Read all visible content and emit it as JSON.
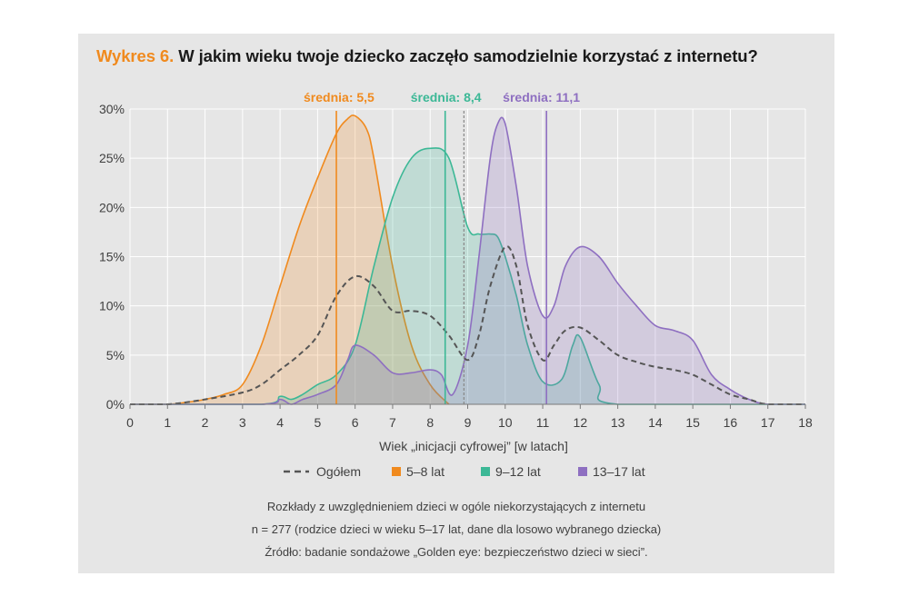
{
  "title": {
    "number": "Wykres 6.",
    "text": "W jakim wieku twoje dziecko zaczęło samodzielnie korzystać z internetu?"
  },
  "chart_data": {
    "type": "area",
    "xlabel": "Wiek „inicjacji cyfrowej” [w latach]",
    "ylabel": "",
    "xlim": [
      0,
      18
    ],
    "ylim": [
      0,
      30
    ],
    "x_ticks": [
      "0",
      "1",
      "2",
      "3",
      "4",
      "5",
      "6",
      "7",
      "8",
      "9",
      "10",
      "11",
      "12",
      "13",
      "14",
      "15",
      "16",
      "17",
      "18"
    ],
    "y_ticks": [
      "0%",
      "5%",
      "10%",
      "15%",
      "20%",
      "25%",
      "30%"
    ],
    "grid": true,
    "legend_position": "bottom",
    "legend": [
      {
        "label": "Ogółem",
        "color": "#555555",
        "style": "dashed"
      },
      {
        "label": "5–8 lat",
        "color": "#f08a1e",
        "style": "solid"
      },
      {
        "label": "9–12 lat",
        "color": "#3cb896",
        "style": "solid"
      },
      {
        "label": "13–17 lat",
        "color": "#8e6fc1",
        "style": "solid"
      }
    ],
    "series": [
      {
        "name": "5–8 lat",
        "color": "#f08a1e",
        "x": [
          0,
          1,
          1.5,
          2,
          2.5,
          3,
          3.5,
          4,
          4.5,
          5,
          5.5,
          5.8,
          6,
          6.3,
          6.5,
          7,
          7.5,
          8,
          8.5
        ],
        "y": [
          0,
          0,
          0.2,
          0.5,
          1,
          2,
          6,
          12,
          18,
          23,
          27.5,
          29,
          29.3,
          28,
          25,
          14,
          6,
          2,
          0
        ]
      },
      {
        "name": "9–12 lat",
        "color": "#3cb896",
        "x": [
          0,
          3.5,
          4,
          4.3,
          4.6,
          5,
          5.5,
          6,
          6.5,
          7,
          7.5,
          8,
          8.5,
          9,
          9.3,
          9.6,
          9.8,
          10,
          10.3,
          10.6,
          11,
          11.5,
          11.8,
          12,
          12.5,
          13,
          18
        ],
        "y": [
          0,
          0,
          0.8,
          0.5,
          1,
          2,
          3,
          6,
          14,
          21,
          25,
          26,
          25,
          18,
          17.3,
          17.3,
          17,
          15,
          11,
          6,
          2.3,
          2.5,
          6,
          6.8,
          2,
          0,
          0
        ]
      },
      {
        "name": "13–17 lat",
        "color": "#8e6fc1",
        "x": [
          0,
          3.5,
          4,
          4.3,
          4.6,
          5,
          5.5,
          5.8,
          6,
          6.5,
          7,
          7.5,
          8,
          8.3,
          8.6,
          9,
          9.3,
          9.6,
          9.8,
          10,
          10.3,
          10.6,
          11,
          11.3,
          11.6,
          12,
          12.5,
          13,
          13.5,
          14,
          14.5,
          15,
          15.5,
          16,
          16.5,
          17,
          18
        ],
        "y": [
          0,
          0,
          0.5,
          0,
          0.5,
          1,
          2,
          4.5,
          6,
          5,
          3.2,
          3.2,
          3.5,
          3,
          1,
          6,
          15,
          25,
          28.5,
          28.5,
          22,
          14,
          9,
          10,
          14,
          16,
          15,
          12.3,
          10,
          8,
          7.5,
          6.5,
          3,
          1.5,
          0.5,
          0,
          0
        ]
      },
      {
        "name": "Ogółem",
        "color": "#555555",
        "dashed": true,
        "x": [
          0,
          1,
          2,
          3,
          3.5,
          4,
          4.5,
          5,
          5.5,
          6,
          6.5,
          7,
          7.5,
          8,
          8.5,
          9,
          9.3,
          9.6,
          10,
          10.3,
          10.6,
          11,
          11.3,
          11.6,
          12,
          12.5,
          13,
          13.5,
          14,
          14.5,
          15,
          15.5,
          16,
          16.5,
          17,
          18
        ],
        "y": [
          0,
          0,
          0.5,
          1.2,
          2,
          3.5,
          5,
          7,
          11,
          13,
          12,
          9.5,
          9.5,
          9,
          7,
          4.5,
          7,
          12,
          16,
          14,
          8,
          4.5,
          6,
          7.5,
          7.8,
          6.5,
          5,
          4.3,
          3.8,
          3.5,
          3,
          2,
          1,
          0.5,
          0,
          0
        ]
      }
    ],
    "means": [
      {
        "label": "średnia: 5,5",
        "value": 5.5,
        "color": "#f08a1e",
        "style": "solid"
      },
      {
        "label": "średnia: 8,4",
        "value": 8.4,
        "color": "#3cb896",
        "style": "solid"
      },
      {
        "label": "",
        "value": 8.9,
        "color": "#888888",
        "style": "dotted"
      },
      {
        "label": "średnia: 11,1",
        "value": 11.1,
        "color": "#8e6fc1",
        "style": "solid"
      }
    ]
  },
  "notes": [
    "Rozkłady z uwzględnieniem dzieci w ogóle niekorzystających z internetu",
    "n = 277 (rodzice dzieci w wieku 5–17 lat, dane dla losowo wybranego dziecka)",
    "Źródło: badanie sondażowe „Golden eye: bezpieczeństwo dzieci w sieci”."
  ]
}
